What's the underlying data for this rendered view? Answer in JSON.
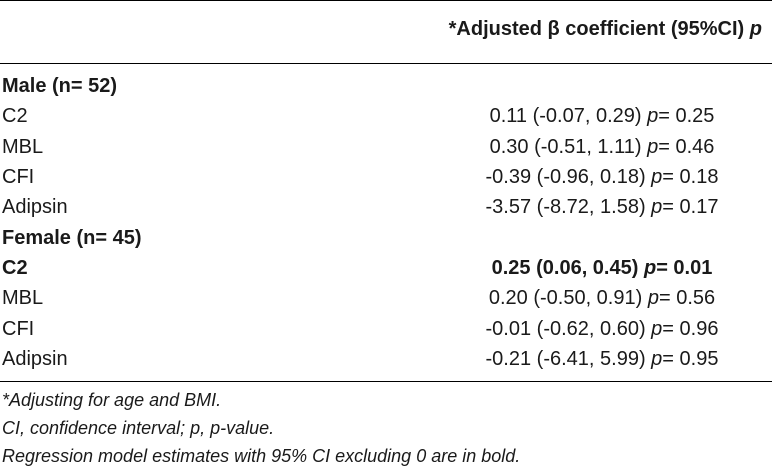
{
  "header": {
    "column_title": "*Adjusted β coefficient (95%CI)",
    "p_label": "p"
  },
  "groups": [
    {
      "title": "Male (n= 52)",
      "rows": [
        {
          "label": "C2",
          "estimate": "0.11 (-0.07, 0.29)",
          "p_label": "p",
          "p_value": "= 0.25",
          "bold": false
        },
        {
          "label": "MBL",
          "estimate": "0.30 (-0.51, 1.11)",
          "p_label": "p",
          "p_value": "= 0.46",
          "bold": false
        },
        {
          "label": "CFI",
          "estimate": "-0.39 (-0.96, 0.18)",
          "p_label": "p",
          "p_value": "= 0.18",
          "bold": false
        },
        {
          "label": "Adipsin",
          "estimate": "-3.57 (-8.72, 1.58)",
          "p_label": "p",
          "p_value": "= 0.17",
          "bold": false
        }
      ]
    },
    {
      "title": "Female (n= 45)",
      "rows": [
        {
          "label": "C2",
          "estimate": "0.25 (0.06, 0.45)",
          "p_label": "p",
          "p_value": "= 0.01",
          "bold": true
        },
        {
          "label": "MBL",
          "estimate": "0.20 (-0.50, 0.91)",
          "p_label": "p",
          "p_value": "= 0.56",
          "bold": false
        },
        {
          "label": "CFI",
          "estimate": "-0.01 (-0.62, 0.60)",
          "p_label": "p",
          "p_value": "= 0.96",
          "bold": false
        },
        {
          "label": "Adipsin",
          "estimate": "-0.21 (-6.41, 5.99)",
          "p_label": "p",
          "p_value": "= 0.95",
          "bold": false
        }
      ]
    }
  ],
  "footnotes": [
    "*Adjusting for age and BMI.",
    "CI, confidence interval; p, p-value.",
    "Regression model estimates with 95% CI excluding 0 are in bold."
  ]
}
